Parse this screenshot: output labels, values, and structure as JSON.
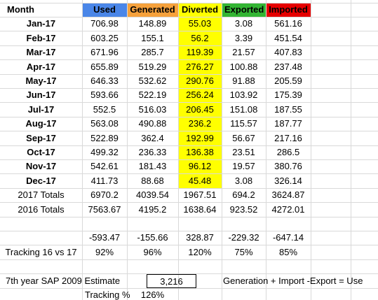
{
  "header": [
    "Month",
    "Used",
    "Generated",
    "Diverted",
    "Exported",
    "Imported"
  ],
  "months": [
    [
      "Jan-17",
      "706.98",
      "148.89",
      "55.03",
      "3.08",
      "561.16"
    ],
    [
      "Feb-17",
      "603.25",
      "155.1",
      "56.2",
      "3.39",
      "451.54"
    ],
    [
      "Mar-17",
      "671.96",
      "285.7",
      "119.39",
      "21.57",
      "407.83"
    ],
    [
      "Apr-17",
      "655.89",
      "519.29",
      "276.27",
      "100.88",
      "237.48"
    ],
    [
      "May-17",
      "646.33",
      "532.62",
      "290.76",
      "91.88",
      "205.59"
    ],
    [
      "Jun-17",
      "593.66",
      "522.19",
      "256.24",
      "103.92",
      "175.39"
    ],
    [
      "Jul-17",
      "552.5",
      "516.03",
      "206.45",
      "151.08",
      "187.55"
    ],
    [
      "Aug-17",
      "563.08",
      "490.88",
      "236.2",
      "115.57",
      "187.77"
    ],
    [
      "Sep-17",
      "522.89",
      "362.4",
      "192.99",
      "56.67",
      "217.16"
    ],
    [
      "Oct-17",
      "499.32",
      "236.33",
      "136.38",
      "23.51",
      "286.5"
    ],
    [
      "Nov-17",
      "542.61",
      "181.43",
      "96.12",
      "19.57",
      "380.76"
    ],
    [
      "Dec-17",
      "411.73",
      "88.68",
      "45.48",
      "3.08",
      "326.14"
    ]
  ],
  "totals": [
    [
      "2017 Totals",
      "6970.2",
      "4039.54",
      "1967.51",
      "694.2",
      "3624.87"
    ],
    [
      "2016 Totals",
      "7563.67",
      "4195.2",
      "1638.64",
      "923.52",
      "4272.01"
    ]
  ],
  "difference": [
    "-593.47",
    "-155.66",
    "328.87",
    "-229.32",
    "-647.14"
  ],
  "tracking": {
    "label": "Tracking 16 vs 17",
    "values": [
      "92%",
      "96%",
      "120%",
      "75%",
      "85%"
    ]
  },
  "estimate": {
    "label": "7th year SAP 2009 Estimate",
    "value": "3,216",
    "formula": "Generation + Import -Export = Use"
  },
  "tracking_percent": {
    "label": "Tracking %",
    "value": "126%"
  }
}
